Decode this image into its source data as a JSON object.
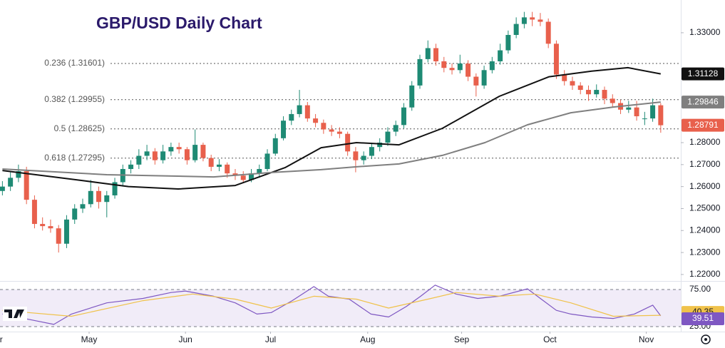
{
  "chart_data": {
    "type": "candlestick",
    "title": "GBP/USD Daily Chart",
    "up_color": "#1e8a74",
    "down_color": "#e8604c",
    "xlim": [
      -0.3,
      84.5
    ],
    "ylim": [
      1.2177,
      1.3449
    ],
    "yticks": [
      {
        "value": 1.33,
        "label": "1.33000"
      },
      {
        "value": 1.28,
        "label": "1.28000"
      },
      {
        "value": 1.27,
        "label": "1.27000"
      },
      {
        "value": 1.26,
        "label": "1.26000"
      },
      {
        "value": 1.25,
        "label": "1.25000"
      },
      {
        "value": 1.24,
        "label": "1.24000"
      },
      {
        "value": 1.23,
        "label": "1.23000"
      },
      {
        "value": 1.22,
        "label": "1.22000"
      }
    ],
    "xticks": [
      {
        "value": -0.8,
        "label": "Apr"
      },
      {
        "value": 10.8,
        "label": "May"
      },
      {
        "value": 22.8,
        "label": "Jun"
      },
      {
        "value": 33.4,
        "label": "Jul"
      },
      {
        "value": 45.5,
        "label": "Aug"
      },
      {
        "value": 57.2,
        "label": "Sep"
      },
      {
        "value": 68.2,
        "label": "Oct"
      },
      {
        "value": 80.2,
        "label": "Nov"
      }
    ],
    "fib_levels": [
      {
        "value": 1.31601,
        "label": "0.236 (1.31601)"
      },
      {
        "value": 1.29955,
        "label": "0.382 (1.29955)"
      },
      {
        "value": 1.28625,
        "label": "0.5 (1.28625)"
      },
      {
        "value": 1.27295,
        "label": "0.618 (1.27295)"
      }
    ],
    "candles": [
      [
        1.258,
        1.2625,
        1.256,
        1.26
      ],
      [
        1.26,
        1.2665,
        1.258,
        1.264
      ],
      [
        1.264,
        1.27,
        1.262,
        1.267
      ],
      [
        1.267,
        1.269,
        1.252,
        1.254
      ],
      [
        1.254,
        1.256,
        1.241,
        1.243
      ],
      [
        1.243,
        1.246,
        1.24,
        1.242
      ],
      [
        1.242,
        1.245,
        1.239,
        1.241
      ],
      [
        1.241,
        1.2425,
        1.23,
        1.234
      ],
      [
        1.234,
        1.247,
        1.232,
        1.245
      ],
      [
        1.245,
        1.252,
        1.243,
        1.25
      ],
      [
        1.25,
        1.2545,
        1.248,
        1.252
      ],
      [
        1.252,
        1.263,
        1.2505,
        1.258
      ],
      [
        1.258,
        1.26,
        1.25,
        1.253
      ],
      [
        1.253,
        1.258,
        1.246,
        1.256
      ],
      [
        1.256,
        1.264,
        1.2545,
        1.262
      ],
      [
        1.262,
        1.27,
        1.26,
        1.268
      ],
      [
        1.268,
        1.272,
        1.266,
        1.27
      ],
      [
        1.27,
        1.277,
        1.268,
        1.274
      ],
      [
        1.274,
        1.279,
        1.272,
        1.276
      ],
      [
        1.276,
        1.2775,
        1.27,
        1.272
      ],
      [
        1.272,
        1.279,
        1.2705,
        1.276
      ],
      [
        1.276,
        1.28,
        1.274,
        1.278
      ],
      [
        1.278,
        1.28,
        1.275,
        1.277
      ],
      [
        1.277,
        1.278,
        1.27,
        1.272
      ],
      [
        1.272,
        1.286,
        1.271,
        1.279
      ],
      [
        1.279,
        1.28,
        1.2715,
        1.273
      ],
      [
        1.273,
        1.2745,
        1.267,
        1.269
      ],
      [
        1.269,
        1.2725,
        1.267,
        1.27
      ],
      [
        1.27,
        1.271,
        1.264,
        1.266
      ],
      [
        1.266,
        1.268,
        1.263,
        1.265
      ],
      [
        1.265,
        1.267,
        1.2615,
        1.263
      ],
      [
        1.263,
        1.268,
        1.262,
        1.266
      ],
      [
        1.266,
        1.27,
        1.264,
        1.268
      ],
      [
        1.268,
        1.277,
        1.267,
        1.275
      ],
      [
        1.275,
        1.284,
        1.274,
        1.282
      ],
      [
        1.282,
        1.292,
        1.281,
        1.29
      ],
      [
        1.29,
        1.295,
        1.288,
        1.293
      ],
      [
        1.293,
        1.304,
        1.2915,
        1.297
      ],
      [
        1.297,
        1.2985,
        1.2895,
        1.291
      ],
      [
        1.291,
        1.293,
        1.287,
        1.289
      ],
      [
        1.289,
        1.2905,
        1.284,
        1.286
      ],
      [
        1.286,
        1.288,
        1.283,
        1.285
      ],
      [
        1.285,
        1.287,
        1.282,
        1.284
      ],
      [
        1.284,
        1.285,
        1.274,
        1.276
      ],
      [
        1.276,
        1.278,
        1.2665,
        1.272
      ],
      [
        1.272,
        1.276,
        1.27,
        1.274
      ],
      [
        1.274,
        1.28,
        1.2725,
        1.278
      ],
      [
        1.278,
        1.282,
        1.276,
        1.28
      ],
      [
        1.28,
        1.287,
        1.2785,
        1.285
      ],
      [
        1.285,
        1.29,
        1.283,
        1.288
      ],
      [
        1.288,
        1.298,
        1.2865,
        1.296
      ],
      [
        1.296,
        1.308,
        1.2945,
        1.306
      ],
      [
        1.306,
        1.32,
        1.3045,
        1.318
      ],
      [
        1.318,
        1.3265,
        1.3165,
        1.323
      ],
      [
        1.323,
        1.325,
        1.315,
        1.317
      ],
      [
        1.317,
        1.319,
        1.312,
        1.314
      ],
      [
        1.314,
        1.316,
        1.311,
        1.313
      ],
      [
        1.313,
        1.32,
        1.3115,
        1.316
      ],
      [
        1.316,
        1.3175,
        1.308,
        1.31
      ],
      [
        1.31,
        1.3115,
        1.301,
        1.306
      ],
      [
        1.306,
        1.315,
        1.3045,
        1.313
      ],
      [
        1.313,
        1.319,
        1.3115,
        1.317
      ],
      [
        1.317,
        1.325,
        1.3155,
        1.322
      ],
      [
        1.322,
        1.331,
        1.3205,
        1.329
      ],
      [
        1.329,
        1.337,
        1.3275,
        1.334
      ],
      [
        1.334,
        1.3395,
        1.332,
        1.337
      ],
      [
        1.337,
        1.3395,
        1.333,
        1.336
      ],
      [
        1.336,
        1.339,
        1.333,
        1.335
      ],
      [
        1.335,
        1.3365,
        1.323,
        1.325
      ],
      [
        1.325,
        1.3265,
        1.309,
        1.311
      ],
      [
        1.311,
        1.313,
        1.306,
        1.308
      ],
      [
        1.308,
        1.31,
        1.304,
        1.306
      ],
      [
        1.306,
        1.3075,
        1.302,
        1.304
      ],
      [
        1.304,
        1.306,
        1.299,
        1.302
      ],
      [
        1.302,
        1.3065,
        1.3005,
        1.304
      ],
      [
        1.304,
        1.3055,
        1.2975,
        1.3
      ],
      [
        1.3,
        1.302,
        1.296,
        1.298
      ],
      [
        1.298,
        1.2995,
        1.293,
        1.295
      ],
      [
        1.295,
        1.299,
        1.2935,
        1.296
      ],
      [
        1.296,
        1.299,
        1.29,
        1.292
      ],
      [
        1.291,
        1.294,
        1.288,
        1.291
      ],
      [
        1.291,
        1.3,
        1.2895,
        1.297
      ],
      [
        1.297,
        1.298,
        1.2845,
        1.28791
      ]
    ],
    "moving_averages": [
      {
        "color": "#111111",
        "x": [
          0,
          8.6,
          15.7,
          21.9,
          29,
          35.2,
          39.7,
          44.1,
          49.4,
          54.8,
          61.9,
          68.1,
          73.4,
          77.9,
          82
        ],
        "values": [
          1.2673,
          1.2634,
          1.26,
          1.2589,
          1.2605,
          1.2686,
          1.2777,
          1.28,
          1.279,
          1.2865,
          1.3011,
          1.31,
          1.3125,
          1.3141,
          1.31128
        ]
      },
      {
        "color": "#7f7f7f",
        "x": [
          0,
          13,
          26.3,
          33.5,
          39.7,
          44.1,
          49.4,
          54.8,
          60.1,
          65.4,
          70.8,
          76.1,
          82
        ],
        "values": [
          1.268,
          1.2654,
          1.2644,
          1.2664,
          1.2677,
          1.269,
          1.2703,
          1.2742,
          1.28,
          1.2881,
          1.2936,
          1.2962,
          1.29846
        ]
      }
    ],
    "rsi": {
      "ylim": [
        21.2,
        82.7
      ],
      "yticks": [
        {
          "value": 75,
          "label": "75.00"
        },
        {
          "value": 25,
          "label": "25.00"
        }
      ],
      "series": [
        {
          "color": "#7e57c2",
          "x": [
            0,
            4.1,
            6.4,
            8.6,
            13,
            17.5,
            21,
            22.8,
            26.3,
            29,
            31.7,
            33.5,
            36.1,
            38.8,
            40.6,
            43.2,
            45.9,
            48.1,
            50.3,
            52.1,
            53.9,
            56.5,
            59.2,
            61.9,
            65.4,
            69,
            70.8,
            73.4,
            76.1,
            78.7,
            81,
            82
          ],
          "values": [
            42,
            33,
            28,
            42,
            57,
            63,
            71,
            73,
            66,
            57,
            42,
            44,
            60,
            79,
            66,
            62,
            42,
            38,
            52,
            66,
            81,
            69,
            63,
            66,
            76,
            47,
            42,
            38,
            36,
            42,
            54,
            39.51
          ]
        },
        {
          "color": "#f0c24a",
          "x": [
            0,
            8.6,
            17.5,
            23.7,
            29,
            33.5,
            38.8,
            44.1,
            48.1,
            53,
            56.5,
            61.9,
            66.3,
            70.8,
            76.1,
            82
          ],
          "values": [
            47,
            39,
            60,
            69,
            62,
            50,
            66,
            62,
            50,
            62,
            71,
            66,
            69,
            57,
            39,
            40.35
          ]
        }
      ]
    }
  }
}
